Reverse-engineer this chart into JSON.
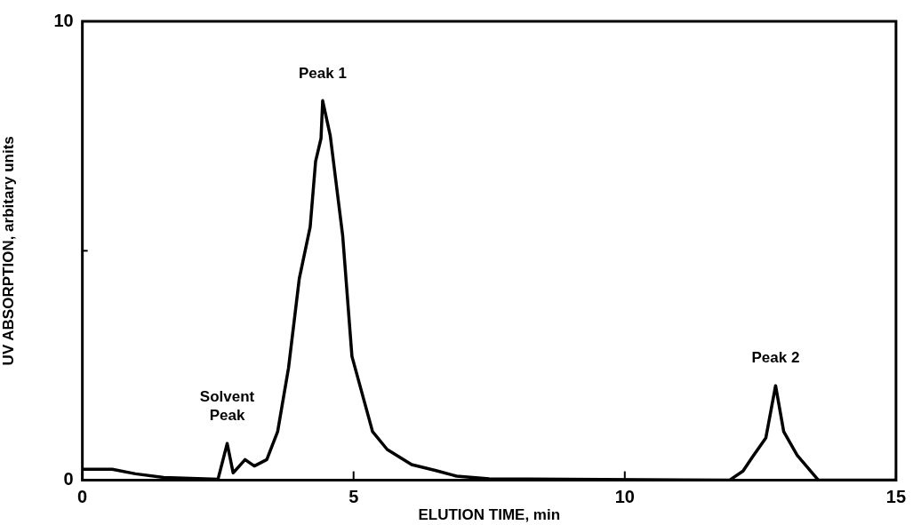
{
  "chart_data": {
    "type": "line",
    "xlabel": "ELUTION TIME, min",
    "ylabel": "UV ABSORPTION, arbitary units",
    "series": [
      {
        "color": "#000000",
        "x": [
          0,
          0.55,
          0.98,
          1.5,
          2.5,
          2.67,
          2.78,
          3.0,
          3.17,
          3.4,
          3.6,
          3.8,
          4.0,
          4.2,
          4.3,
          4.4,
          4.43,
          4.57,
          4.8,
          4.97,
          5.35,
          5.62,
          6.07,
          6.52,
          6.9,
          7.5,
          11.93,
          12.18,
          12.35,
          12.6,
          12.78,
          12.93,
          13.18,
          13.57,
          15
        ],
        "values": [
          0.24,
          0.24,
          0.14,
          0.06,
          0.02,
          0.8,
          0.16,
          0.45,
          0.31,
          0.45,
          1.06,
          2.44,
          4.4,
          5.52,
          6.95,
          7.45,
          8.27,
          7.51,
          5.32,
          2.7,
          1.06,
          0.67,
          0.34,
          0.21,
          0.09,
          0.03,
          0,
          0.2,
          0.5,
          0.92,
          2.06,
          1.06,
          0.54,
          0,
          0
        ]
      }
    ],
    "xlim": [
      0,
      15
    ],
    "xticks": [
      0,
      5,
      10,
      15
    ],
    "ylim": [
      0,
      10
    ],
    "yticks": [
      0,
      {
        "value": 5,
        "label": null
      },
      10
    ],
    "annotations": [
      {
        "text": "Solvent Peak",
        "x": 2.67,
        "y": 0.8
      },
      {
        "text": "Peak 1",
        "x": 4.43,
        "y": 8.27
      },
      {
        "text": "Peak 2",
        "x": 12.78,
        "y": 2.06
      }
    ],
    "marker": "none",
    "line_style": "solid",
    "grid": false,
    "legend": false
  }
}
